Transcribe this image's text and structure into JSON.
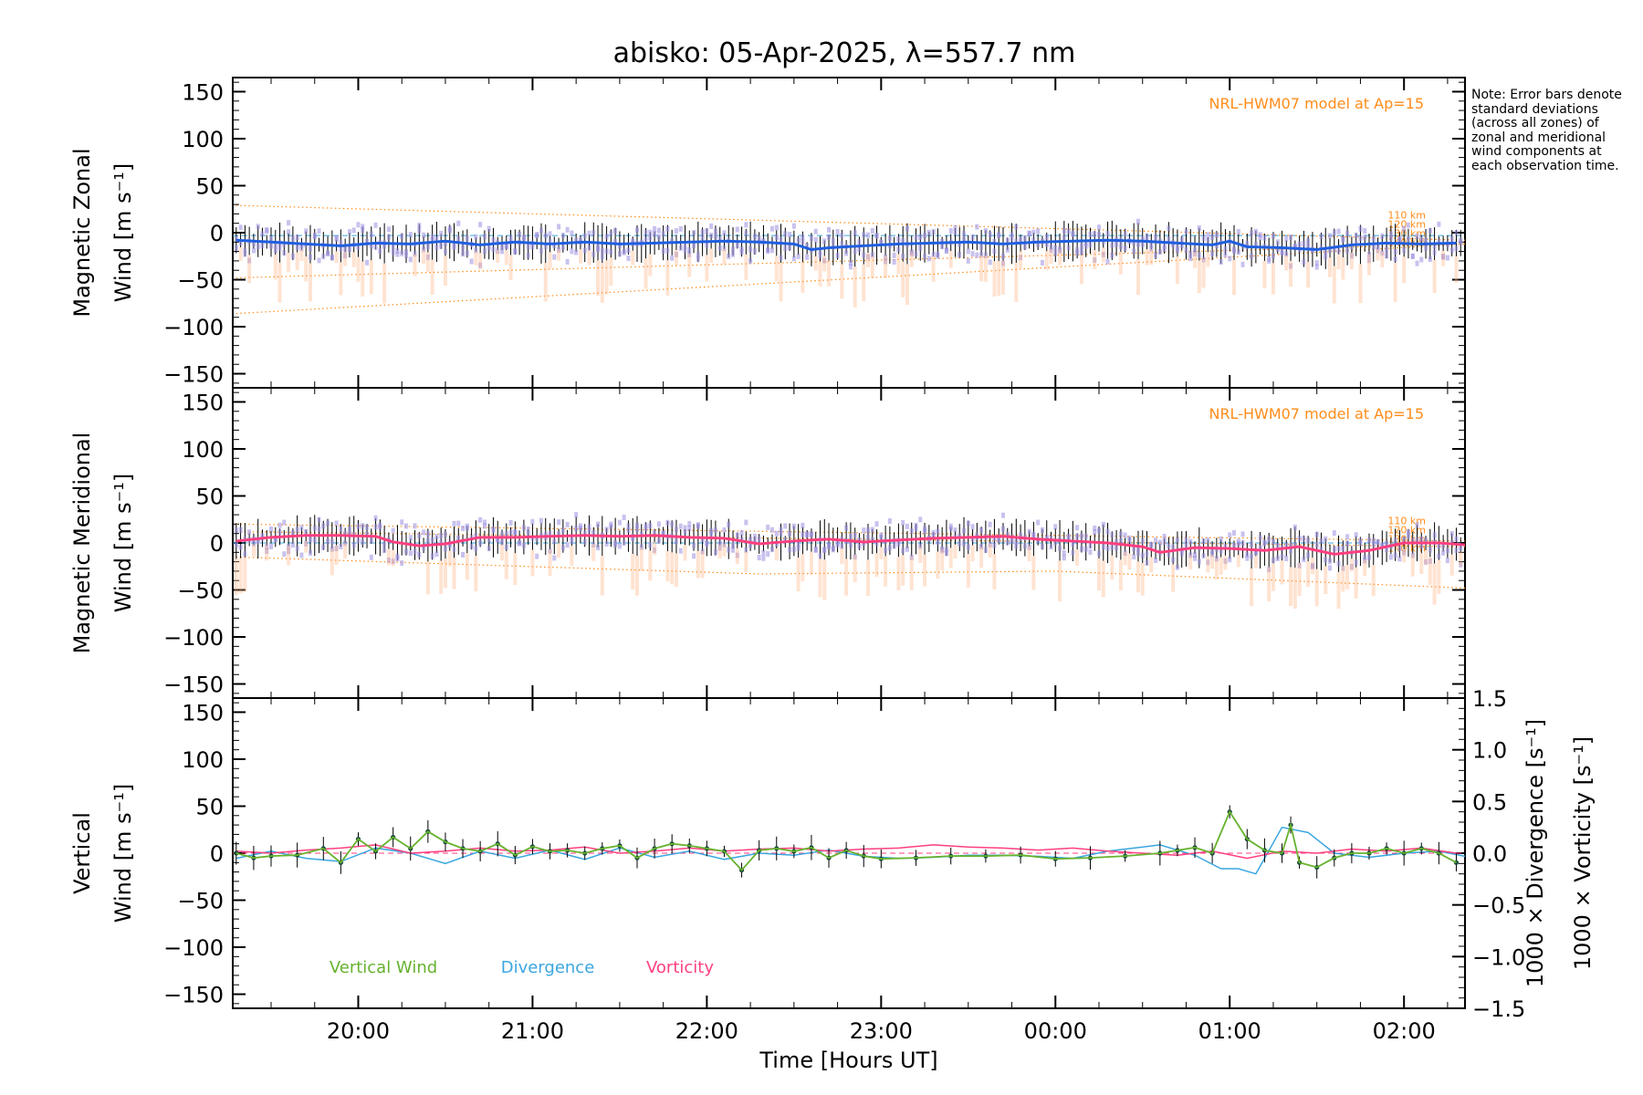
{
  "title": "abisko: 05-Apr-2025, λ=557.7 nm",
  "note": "Note: Error bars denote standard deviations (across all zones) of zonal and meridional wind components at each observation time.",
  "model_label": "NRL-HWM07 model at Ap=15",
  "altitude_labels": [
    "110 km",
    "120 km",
    "130 km",
    "140 km"
  ],
  "colors": {
    "zonal": "#1f5fe0",
    "meridional": "#ff3f7f",
    "vertical": "#66b22e",
    "divergence": "#3aa6e0",
    "vorticity": "#ff3f7f",
    "model": "#ff8c1a",
    "scatter": "#9b8fe0"
  },
  "chart_data": [
    {
      "type": "line",
      "title": "abisko: 05-Apr-2025, λ=557.7 nm",
      "ylabel_line1": "Magnetic Zonal",
      "ylabel_line2": "Wind [m s⁻¹]",
      "ylim": [
        -165,
        165
      ],
      "yticks": [
        150,
        100,
        50,
        0,
        -50,
        -100,
        -150
      ],
      "ytick_labels": [
        "150",
        "100",
        "50",
        "0",
        "−50",
        "−100",
        "−150"
      ],
      "xlim": [
        19.28,
        26.35
      ],
      "series": [
        {
          "x": [
            19.3,
            19.5,
            19.7,
            19.9,
            20.1,
            20.3,
            20.5,
            20.7,
            20.9,
            21.1,
            21.3,
            21.5,
            21.7,
            21.9,
            22.1,
            22.3,
            22.5,
            22.6,
            22.7,
            22.9,
            23.1,
            23.3,
            23.5,
            23.7,
            23.9,
            24.1,
            24.3,
            24.5,
            24.7,
            24.9,
            25.0,
            25.1,
            25.3,
            25.5,
            25.7,
            25.9,
            26.1,
            26.3
          ],
          "values": [
            -8,
            -10,
            -12,
            -14,
            -11,
            -12,
            -9,
            -13,
            -10,
            -12,
            -10,
            -12,
            -11,
            -10,
            -9,
            -10,
            -12,
            -18,
            -16,
            -14,
            -12,
            -11,
            -10,
            -12,
            -10,
            -9,
            -8,
            -9,
            -11,
            -13,
            -9,
            -15,
            -16,
            -18,
            -13,
            -11,
            -12,
            -11
          ]
        },
        {
          "x": [
            19.3,
            26.35
          ],
          "values": [
            29,
            -8
          ]
        },
        {
          "x": [
            19.3,
            26.35
          ],
          "values": [
            -48,
            -12
          ]
        },
        {
          "x": [
            19.3,
            26.35
          ],
          "values": [
            -86,
            -12
          ]
        },
        {
          "x": [
            19.3,
            26.35
          ],
          "values": [
            -3,
            -3
          ]
        }
      ]
    },
    {
      "type": "line",
      "ylabel_line1": "Magnetic Meridional",
      "ylabel_line2": "Wind [m s⁻¹]",
      "ylim": [
        -165,
        165
      ],
      "yticks": [
        150,
        100,
        50,
        0,
        -50,
        -100,
        -150
      ],
      "ytick_labels": [
        "150",
        "100",
        "50",
        "0",
        "−50",
        "−100",
        "−150"
      ],
      "xlim": [
        19.28,
        26.35
      ],
      "series": [
        {
          "x": [
            19.3,
            19.5,
            19.7,
            19.9,
            20.1,
            20.2,
            20.35,
            20.5,
            20.7,
            20.9,
            21.1,
            21.3,
            21.5,
            21.7,
            21.9,
            22.1,
            22.3,
            22.5,
            22.7,
            22.9,
            23.1,
            23.3,
            23.5,
            23.7,
            23.9,
            24.1,
            24.3,
            24.5,
            24.6,
            24.8,
            25.0,
            25.2,
            25.4,
            25.5,
            25.6,
            25.8,
            26.0,
            26.2,
            26.35
          ],
          "values": [
            2,
            6,
            8,
            8,
            7,
            1,
            -3,
            -1,
            6,
            6,
            7,
            8,
            7,
            8,
            6,
            5,
            -1,
            2,
            4,
            1,
            3,
            5,
            6,
            7,
            4,
            2,
            0,
            -4,
            -10,
            -5,
            -6,
            -8,
            -4,
            -8,
            -12,
            -8,
            0,
            0,
            -2
          ]
        },
        {
          "x": [
            19.3,
            26.35
          ],
          "values": [
            20,
            2
          ]
        },
        {
          "x": [
            19.3,
            26.35
          ],
          "values": [
            12,
            -4
          ]
        },
        {
          "x": [
            19.3,
            22.3,
            24.0,
            26.35
          ],
          "values": [
            -15,
            -33,
            -30,
            -48
          ]
        }
      ]
    },
    {
      "type": "line",
      "ylabel_line1": "Vertical",
      "ylabel_line2": "Wind [m s⁻¹]",
      "right_label1": "1000 × Divergence [s⁻¹]",
      "right_label2": "1000 × Vorticity [s⁻¹]",
      "ylim": [
        -165,
        165
      ],
      "yticks": [
        150,
        100,
        50,
        0,
        -50,
        -100,
        -150
      ],
      "ytick_labels": [
        "150",
        "100",
        "50",
        "0",
        "−50",
        "−100",
        "−150"
      ],
      "y2lim": [
        -1.5,
        1.5
      ],
      "y2ticks": [
        1.5,
        1.0,
        0.5,
        0.0,
        -0.5,
        -1.0,
        -1.5
      ],
      "y2tick_labels": [
        "1.5",
        "1.0",
        "0.5",
        "0.0",
        "−0.5",
        "−1.0",
        "−1.5"
      ],
      "xlim": [
        19.28,
        26.35
      ],
      "xticks": [
        20,
        21,
        22,
        23,
        24,
        25,
        26
      ],
      "xtick_labels": [
        "20:00",
        "21:00",
        "22:00",
        "23:00",
        "00:00",
        "01:00",
        "02:00"
      ],
      "xlabel": "Time [Hours UT]",
      "legend": [
        "Vertical Wind",
        "Divergence",
        "Vorticity"
      ],
      "series": [
        {
          "name": "Vertical Wind",
          "x": [
            19.3,
            19.4,
            19.5,
            19.65,
            19.8,
            19.9,
            20.0,
            20.1,
            20.2,
            20.3,
            20.4,
            20.5,
            20.6,
            20.7,
            20.8,
            20.9,
            21.0,
            21.1,
            21.2,
            21.3,
            21.4,
            21.5,
            21.6,
            21.7,
            21.8,
            21.9,
            22.0,
            22.1,
            22.2,
            22.3,
            22.4,
            22.5,
            22.6,
            22.7,
            22.8,
            22.9,
            23.0,
            23.2,
            23.4,
            23.6,
            23.8,
            24.0,
            24.2,
            24.4,
            24.6,
            24.7,
            24.8,
            24.9,
            25.0,
            25.1,
            25.2,
            25.3,
            25.35,
            25.4,
            25.5,
            25.6,
            25.7,
            25.8,
            25.9,
            26.0,
            26.1,
            26.2,
            26.3
          ],
          "values": [
            0,
            -5,
            -3,
            -2,
            5,
            -10,
            15,
            2,
            17,
            5,
            23,
            12,
            5,
            2,
            10,
            -2,
            7,
            2,
            3,
            0,
            5,
            8,
            -5,
            5,
            10,
            8,
            5,
            2,
            -18,
            3,
            5,
            2,
            6,
            -5,
            3,
            -3,
            -6,
            -5,
            -3,
            -3,
            -2,
            -6,
            -5,
            -3,
            0,
            3,
            6,
            0,
            44,
            15,
            3,
            0,
            30,
            -10,
            -15,
            -5,
            0,
            0,
            5,
            0,
            5,
            0,
            -10
          ]
        },
        {
          "name": "Divergence",
          "x": [
            19.3,
            19.5,
            19.7,
            19.9,
            20.1,
            20.3,
            20.5,
            20.7,
            20.9,
            21.1,
            21.3,
            21.5,
            21.7,
            21.9,
            22.1,
            22.3,
            22.5,
            22.7,
            22.9,
            23.1,
            23.3,
            23.5,
            23.7,
            23.9,
            24.1,
            24.3,
            24.5,
            24.6,
            24.8,
            24.95,
            25.05,
            25.15,
            25.3,
            25.45,
            25.6,
            25.8,
            26.0,
            26.2,
            26.35
          ],
          "values": [
            -0.05,
            0.02,
            -0.05,
            -0.08,
            0.05,
            0.0,
            -0.1,
            0.02,
            -0.05,
            0.03,
            -0.06,
            0.05,
            -0.04,
            0.02,
            -0.06,
            0.0,
            -0.02,
            0.03,
            -0.03,
            -0.05,
            -0.04,
            -0.02,
            -0.02,
            -0.03,
            -0.05,
            0.02,
            0.06,
            0.08,
            -0.02,
            -0.15,
            -0.15,
            -0.2,
            0.25,
            0.2,
            0.0,
            -0.04,
            0.0,
            0.02,
            -0.03
          ]
        },
        {
          "name": "Vorticity",
          "x": [
            19.3,
            19.5,
            19.7,
            19.9,
            20.1,
            20.3,
            20.5,
            20.7,
            20.9,
            21.1,
            21.3,
            21.5,
            21.7,
            21.9,
            22.1,
            22.3,
            22.5,
            22.7,
            22.9,
            23.1,
            23.3,
            23.5,
            23.7,
            23.9,
            24.1,
            24.3,
            24.5,
            24.7,
            24.9,
            25.1,
            25.3,
            25.5,
            25.7,
            25.9,
            26.1,
            26.3
          ],
          "values": [
            0.02,
            0.0,
            0.03,
            0.05,
            0.08,
            0.0,
            0.02,
            0.05,
            0.02,
            0.03,
            0.06,
            0.0,
            0.02,
            0.05,
            0.02,
            0.04,
            0.05,
            0.02,
            0.04,
            0.05,
            0.08,
            0.06,
            0.05,
            0.03,
            0.05,
            0.02,
            0.0,
            -0.02,
            0.02,
            -0.05,
            0.02,
            0.0,
            0.04,
            0.02,
            0.05,
            0.0
          ]
        }
      ]
    }
  ]
}
